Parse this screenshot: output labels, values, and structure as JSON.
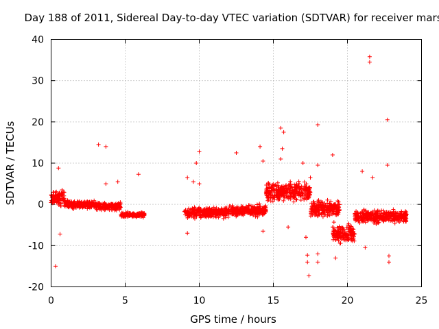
{
  "chart_data": {
    "type": "scatter",
    "title": "Day 188 of 2011, Sidereal Day-to-day VTEC variation (SDTVAR) for receiver mars",
    "xlabel": "GPS time / hours",
    "ylabel": "SDTVAR / TECUs",
    "xlim": [
      0,
      25
    ],
    "ylim": [
      -20,
      40
    ],
    "xticks": [
      0,
      5,
      10,
      15,
      20,
      25
    ],
    "yticks": [
      -20,
      -10,
      0,
      10,
      20,
      30,
      40
    ],
    "xtick_labels": [
      "0",
      "5",
      "10",
      "15",
      "20",
      "25"
    ],
    "ytick_labels": [
      "-20",
      "-10",
      "0",
      "10",
      "20",
      "30",
      "40"
    ],
    "grid": true,
    "marker": "+",
    "color": "#ff0000",
    "series": [
      {
        "name": "SDTVAR",
        "clusters": [
          {
            "x_start": 0.0,
            "x_end": 0.9,
            "y_center": 1.5,
            "spread": 2.5
          },
          {
            "x_start": 0.9,
            "x_end": 3.0,
            "y_center": 0.0,
            "spread": 1.2
          },
          {
            "x_start": 3.0,
            "x_end": 4.7,
            "y_center": -0.5,
            "spread": 1.2
          },
          {
            "x_start": 4.7,
            "x_end": 6.3,
            "y_center": -2.5,
            "spread": 0.8
          },
          {
            "x_start": 9.0,
            "x_end": 12.0,
            "y_center": -2.0,
            "spread": 1.6
          },
          {
            "x_start": 12.0,
            "x_end": 14.5,
            "y_center": -1.5,
            "spread": 1.8
          },
          {
            "x_start": 14.5,
            "x_end": 17.5,
            "y_center": 3.0,
            "spread": 3.0
          },
          {
            "x_start": 17.5,
            "x_end": 19.5,
            "y_center": -1.0,
            "spread": 2.5
          },
          {
            "x_start": 19.0,
            "x_end": 20.5,
            "y_center": -7.0,
            "spread": 3.0
          },
          {
            "x_start": 20.5,
            "x_end": 24.0,
            "y_center": -3.0,
            "spread": 2.0
          }
        ],
        "outliers": [
          {
            "x": 0.3,
            "y": -15
          },
          {
            "x": 0.6,
            "y": -7.2
          },
          {
            "x": 0.5,
            "y": 8.8
          },
          {
            "x": 3.2,
            "y": 14.5
          },
          {
            "x": 3.7,
            "y": 14.0
          },
          {
            "x": 3.7,
            "y": 5.0
          },
          {
            "x": 4.5,
            "y": 5.5
          },
          {
            "x": 5.9,
            "y": 7.3
          },
          {
            "x": 9.2,
            "y": 6.5
          },
          {
            "x": 9.2,
            "y": -7.0
          },
          {
            "x": 9.6,
            "y": 5.5
          },
          {
            "x": 9.8,
            "y": 10.0
          },
          {
            "x": 10.0,
            "y": 12.8
          },
          {
            "x": 10.0,
            "y": 5.0
          },
          {
            "x": 12.5,
            "y": 12.5
          },
          {
            "x": 14.1,
            "y": 14.0
          },
          {
            "x": 14.3,
            "y": 10.5
          },
          {
            "x": 14.3,
            "y": -6.5
          },
          {
            "x": 15.5,
            "y": 18.5
          },
          {
            "x": 15.7,
            "y": 17.5
          },
          {
            "x": 15.6,
            "y": 13.5
          },
          {
            "x": 15.5,
            "y": 11.0
          },
          {
            "x": 16.0,
            "y": -5.5
          },
          {
            "x": 17.0,
            "y": 10.0
          },
          {
            "x": 17.2,
            "y": -8.0
          },
          {
            "x": 17.3,
            "y": -12.3
          },
          {
            "x": 17.3,
            "y": -14.0
          },
          {
            "x": 17.4,
            "y": -17.3
          },
          {
            "x": 17.5,
            "y": 6.5
          },
          {
            "x": 18.0,
            "y": 19.3
          },
          {
            "x": 18.0,
            "y": 9.5
          },
          {
            "x": 18.0,
            "y": -12.0
          },
          {
            "x": 18.0,
            "y": -14.0
          },
          {
            "x": 19.0,
            "y": 12.0
          },
          {
            "x": 21.0,
            "y": 8.0
          },
          {
            "x": 21.5,
            "y": 35.8
          },
          {
            "x": 21.5,
            "y": 34.5
          },
          {
            "x": 21.7,
            "y": 6.5
          },
          {
            "x": 22.7,
            "y": 20.5
          },
          {
            "x": 22.7,
            "y": 9.5
          },
          {
            "x": 22.8,
            "y": -12.5
          },
          {
            "x": 22.8,
            "y": -14.0
          },
          {
            "x": 21.2,
            "y": -10.5
          },
          {
            "x": 19.2,
            "y": -13.0
          }
        ]
      }
    ]
  }
}
